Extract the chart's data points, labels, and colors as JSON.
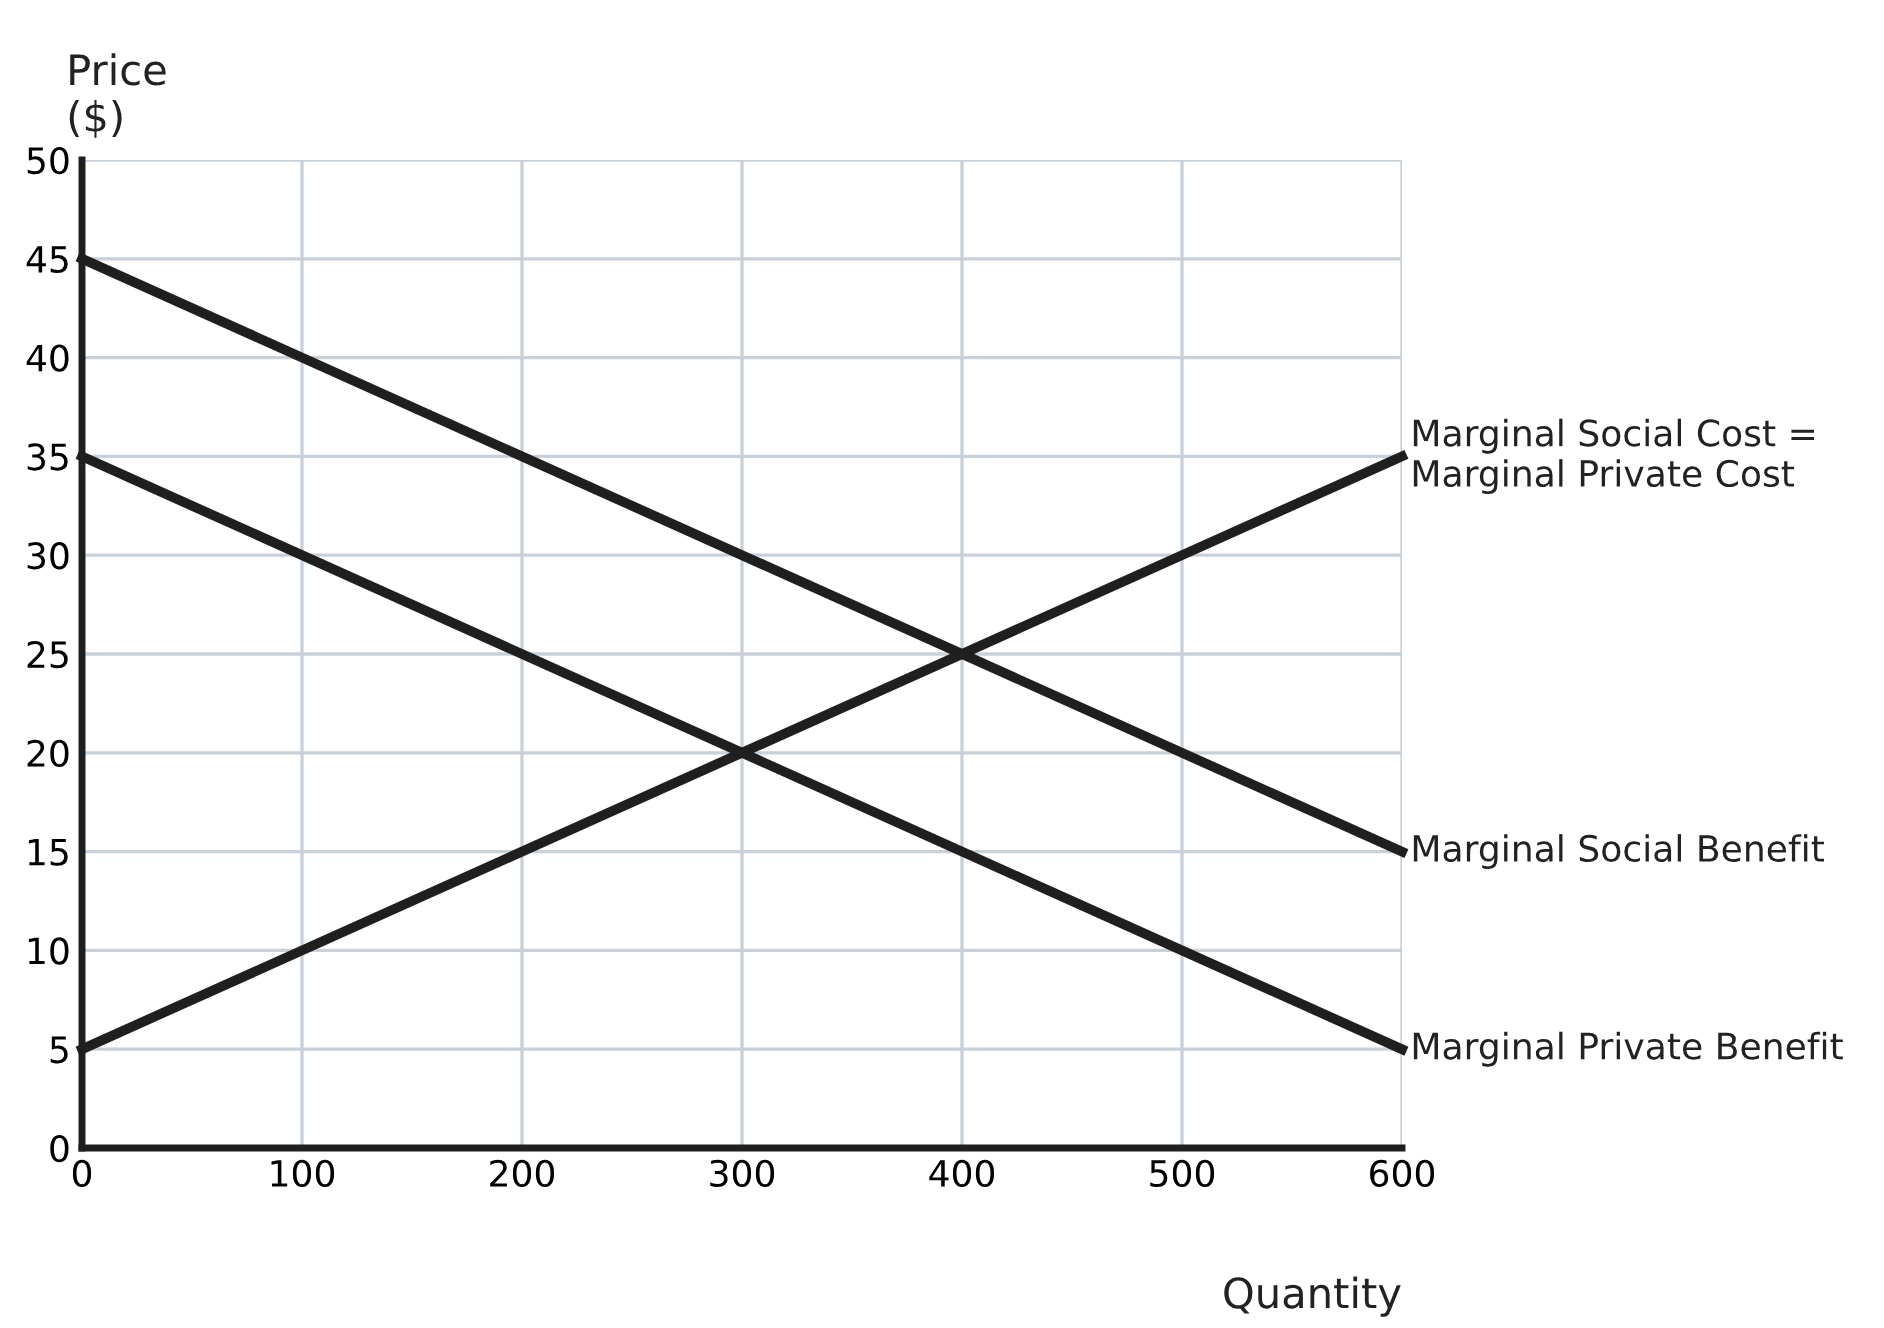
{
  "chart_data": {
    "type": "line",
    "xlabel": "Quantity",
    "ylabel": "Price\n($)",
    "x": [
      0,
      600
    ],
    "series": [
      {
        "name": "Marginal Social Cost =\nMarginal Private Cost",
        "color": "#1f1f1f",
        "values": [
          5,
          35
        ]
      },
      {
        "name": "Marginal Social Benefit",
        "color": "#1f1f1f",
        "values": [
          45,
          15
        ]
      },
      {
        "name": "Marginal Private Benefit",
        "color": "#1f1f1f",
        "values": [
          35,
          5
        ]
      }
    ],
    "xlim": [
      0,
      600
    ],
    "xticks": [
      0,
      100,
      200,
      300,
      400,
      500,
      600
    ],
    "ylim": [
      0,
      50
    ],
    "yticks": [
      0,
      5,
      10,
      15,
      20,
      25,
      30,
      35,
      40,
      45,
      50
    ],
    "grid": true,
    "legend": false,
    "marker": "none",
    "line_style": "solid"
  }
}
